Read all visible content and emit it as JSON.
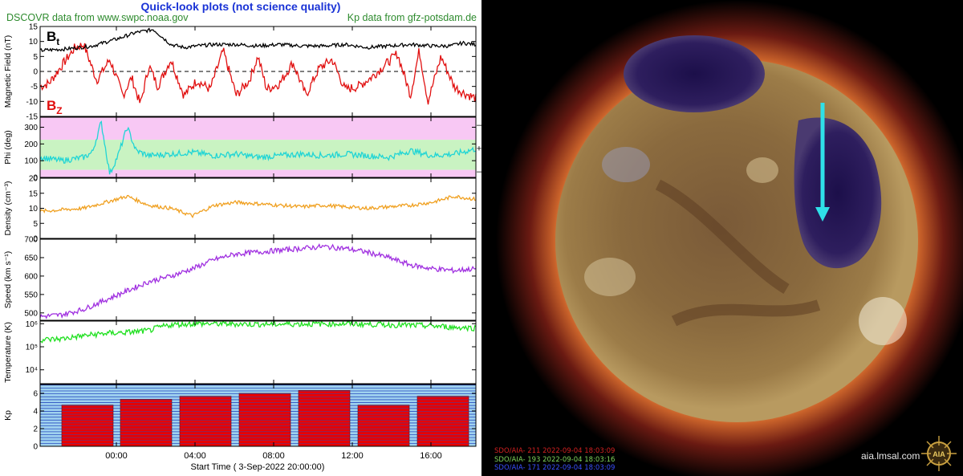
{
  "header": {
    "title": "Quick-look plots (not science quality)",
    "left_source": "DSCOVR data from www.swpc.noaa.gov",
    "right_source": "Kp data from gfz-potsdam.de"
  },
  "colors": {
    "bt": "#000000",
    "bz": "#e11010",
    "phi": "#20d5d5",
    "density": "#f0a020",
    "speed": "#a030e0",
    "temperature": "#20e020",
    "kp_bar": "#e80000",
    "kp_bg": "#9fd2ef",
    "phi_away": "#f8c8f4",
    "phi_toward": "#c9f3c2",
    "arrow": "#2fe0e8"
  },
  "chart_data": [
    {
      "type": "line",
      "id": "magnetic",
      "ylabel": "Magnetic Field (nT)",
      "ylim": [
        -15,
        15
      ],
      "yticks": [
        "15",
        "10",
        "5",
        "0",
        "-5",
        "-10",
        "-15"
      ],
      "series": [
        {
          "name": "Bt",
          "x": [
            0,
            0.06,
            0.12,
            0.18,
            0.22,
            0.26,
            0.3,
            0.33,
            0.36,
            0.4,
            0.45,
            0.5,
            0.55,
            0.6,
            0.65,
            0.7,
            0.75,
            0.8,
            0.85,
            0.9,
            0.94,
            0.97,
            1.0
          ],
          "values": [
            7,
            7.5,
            8.5,
            11,
            13,
            14,
            9,
            8,
            8.5,
            9,
            9,
            8.5,
            9,
            8.5,
            8.5,
            9,
            8,
            8.5,
            9,
            8.5,
            8.5,
            9.5,
            9
          ]
        },
        {
          "name": "Bz",
          "x": [
            0,
            0.02,
            0.05,
            0.08,
            0.1,
            0.13,
            0.16,
            0.19,
            0.21,
            0.23,
            0.25,
            0.27,
            0.3,
            0.33,
            0.36,
            0.39,
            0.42,
            0.45,
            0.48,
            0.5,
            0.52,
            0.55,
            0.58,
            0.61,
            0.64,
            0.67,
            0.7,
            0.73,
            0.76,
            0.79,
            0.82,
            0.85,
            0.87,
            0.89,
            0.92,
            0.95,
            0.97,
            1.0
          ],
          "values": [
            -5,
            -4,
            2,
            8,
            9,
            -3,
            4,
            -8,
            -2,
            -11,
            2,
            -5,
            4,
            -8,
            -3,
            -6,
            7,
            -8,
            -3,
            5,
            -6,
            -4,
            3,
            -8,
            1,
            4,
            -6,
            -5,
            -2,
            2,
            6,
            -8,
            7,
            -10,
            5,
            -5,
            -7,
            -9
          ]
        }
      ]
    },
    {
      "type": "line",
      "id": "phi",
      "ylabel": "Phi (deg)",
      "ylim": [
        0,
        360
      ],
      "yticks": [
        "300",
        "200",
        "100",
        "0"
      ],
      "side_labels": [
        "–",
        "+",
        "–"
      ],
      "series": [
        {
          "name": "",
          "x": [
            0,
            0.05,
            0.1,
            0.12,
            0.14,
            0.16,
            0.18,
            0.2,
            0.22,
            0.25,
            0.3,
            0.35,
            0.4,
            0.45,
            0.5,
            0.55,
            0.6,
            0.65,
            0.7,
            0.75,
            0.8,
            0.85,
            0.9,
            0.95,
            1.0
          ],
          "values": [
            120,
            100,
            120,
            150,
            330,
            20,
            140,
            300,
            160,
            130,
            140,
            150,
            130,
            140,
            120,
            130,
            140,
            130,
            140,
            130,
            120,
            160,
            130,
            140,
            170
          ]
        }
      ]
    },
    {
      "type": "line",
      "id": "density",
      "ylabel": "Density (cm⁻³)",
      "ylim": [
        0,
        20
      ],
      "yticks": [
        "20",
        "15",
        "10",
        "5",
        "0"
      ],
      "series": [
        {
          "name": "",
          "x": [
            0,
            0.05,
            0.1,
            0.15,
            0.2,
            0.25,
            0.3,
            0.35,
            0.4,
            0.45,
            0.5,
            0.55,
            0.6,
            0.65,
            0.7,
            0.75,
            0.8,
            0.85,
            0.9,
            0.95,
            1.0
          ],
          "values": [
            9,
            9.5,
            10,
            12,
            14,
            11,
            10,
            7.5,
            11,
            12,
            11.5,
            11,
            10.5,
            11,
            10.5,
            10,
            10.5,
            11,
            12,
            14,
            13
          ]
        }
      ]
    },
    {
      "type": "line",
      "id": "speed",
      "ylabel": "Speed (km s⁻¹)",
      "ylim": [
        480,
        700
      ],
      "yticks": [
        "700",
        "650",
        "600",
        "550",
        "500"
      ],
      "series": [
        {
          "name": "",
          "x": [
            0,
            0.05,
            0.1,
            0.15,
            0.2,
            0.25,
            0.3,
            0.35,
            0.4,
            0.45,
            0.5,
            0.55,
            0.6,
            0.65,
            0.7,
            0.75,
            0.8,
            0.85,
            0.9,
            0.95,
            1.0
          ],
          "values": [
            490,
            495,
            510,
            535,
            560,
            585,
            600,
            620,
            645,
            660,
            665,
            670,
            675,
            680,
            675,
            665,
            650,
            630,
            620,
            615,
            620
          ]
        }
      ]
    },
    {
      "type": "line",
      "id": "temperature",
      "log_scale": true,
      "ylabel": "Temperature (K)",
      "yticks": [
        "10⁶",
        "10⁵",
        "10⁴"
      ],
      "series": [
        {
          "name": "",
          "x": [
            0,
            0.05,
            0.1,
            0.15,
            0.2,
            0.25,
            0.3,
            0.35,
            0.4,
            0.5,
            0.6,
            0.7,
            0.8,
            0.9,
            0.95,
            1.0
          ],
          "values": [
            200000,
            220000,
            300000,
            380000,
            420000,
            500000,
            900000,
            1000000,
            1000000,
            950000,
            980000,
            1000000,
            900000,
            800000,
            700000,
            650000
          ]
        }
      ]
    },
    {
      "type": "bar",
      "id": "kp",
      "ylabel": "Kp",
      "ylim": [
        0,
        7
      ],
      "yticks": [
        "6",
        "4",
        "2",
        "0"
      ],
      "values": [
        4.67,
        5.33,
        5.67,
        6.0,
        6.33,
        4.67,
        5.67
      ],
      "xticks": [
        "00:00",
        "04:00",
        "08:00",
        "12:00",
        "16:00"
      ],
      "xlabel": "Start Time ( 3-Sep-2022 20:00:00)"
    }
  ],
  "labels": {
    "bt": "B",
    "bt_sub": "t",
    "bz": "B",
    "bz_sub": "Z"
  },
  "image": {
    "caption_211": "SDO/AIA- 211 2022-09-04 18:03:09",
    "caption_193": "SDO/AIA- 193 2022-09-04 18:03:16",
    "caption_171": "SDO/AIA- 171 2022-09-04 18:03:09",
    "site": "aia.lmsal.com"
  }
}
